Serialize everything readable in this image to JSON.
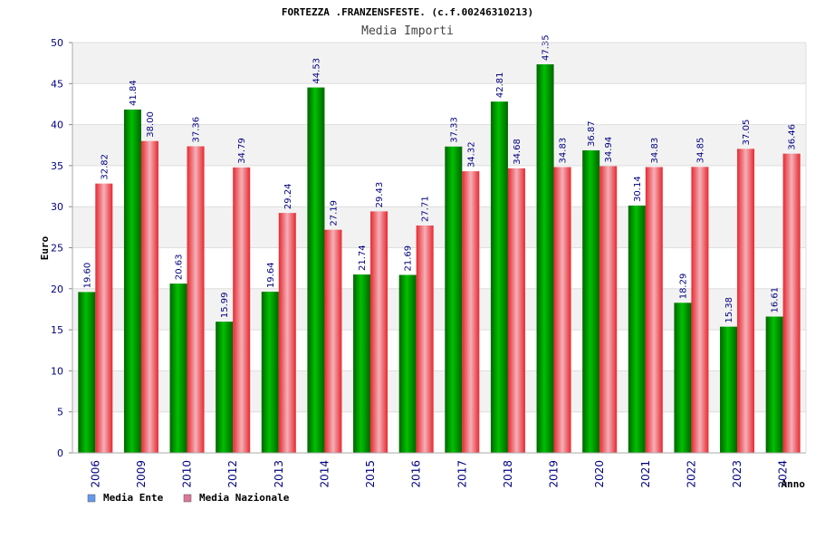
{
  "colors": {
    "ente": "#00c000",
    "ente_dark": "#006400",
    "nazionale": "#e8282f",
    "nazionale_light": "#f4b0b8",
    "legend_ente": "#6699ee",
    "legend_nazionale": "#dd7799",
    "band": "#f2f2f2",
    "grid": "#dddddd",
    "text": "#000080"
  },
  "chart_data": {
    "type": "bar",
    "title": "FORTEZZA .FRANZENSFESTE. (c.f.00246310213)",
    "subtitle": "Media Importi",
    "xlabel": "Anno",
    "ylabel": "Euro",
    "ylim": [
      0,
      50
    ],
    "yticks": [
      0,
      5,
      10,
      15,
      20,
      25,
      30,
      35,
      40,
      45,
      50
    ],
    "grid": true,
    "legend_position": "bottom-left",
    "categories": [
      "2006",
      "2009",
      "2010",
      "2012",
      "2013",
      "2014",
      "2015",
      "2016",
      "2017",
      "2018",
      "2019",
      "2020",
      "2021",
      "2022",
      "2023",
      "2024"
    ],
    "series": [
      {
        "name": "Media Ente",
        "values": [
          19.6,
          41.84,
          20.63,
          15.99,
          19.64,
          44.53,
          21.74,
          21.69,
          37.33,
          42.81,
          47.35,
          36.87,
          30.14,
          18.29,
          15.38,
          16.61
        ],
        "labels": [
          "19.60",
          "41.84",
          "20.63",
          "15.99",
          "19.64",
          "44.53",
          "21.74",
          "21.69",
          "37.33",
          "42.81",
          "47.35",
          "36.87",
          "30.14",
          "18.29",
          "15.38",
          "16.61"
        ]
      },
      {
        "name": "Media Nazionale",
        "values": [
          32.82,
          38.0,
          37.36,
          34.79,
          29.24,
          27.19,
          29.43,
          27.71,
          34.32,
          34.68,
          34.83,
          34.94,
          34.83,
          34.85,
          37.05,
          36.46
        ],
        "labels": [
          "32.82",
          "38.00",
          "37.36",
          "34.79",
          "29.24",
          "27.19",
          "29.43",
          "27.71",
          "34.32",
          "34.68",
          "34.83",
          "34.94",
          "34.83",
          "34.85",
          "37.05",
          "36.46"
        ]
      }
    ]
  }
}
